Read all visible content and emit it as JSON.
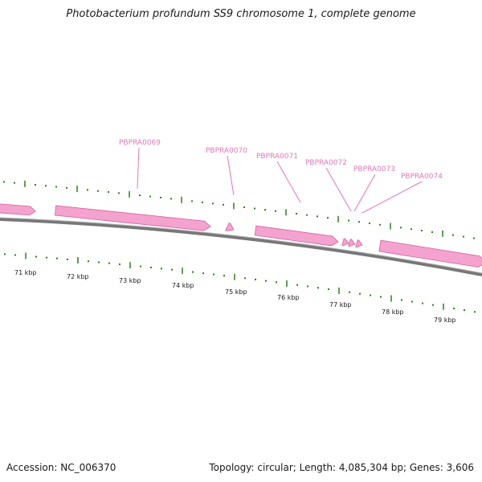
{
  "title": "Photobacterium profundum SS9 chromosome 1, complete genome",
  "footer": {
    "accession": "Accession: NC_006370",
    "stats": "Topology: circular; Length: 4,085,304 bp; Genes: 3,606"
  },
  "colors": {
    "gene_fill": "#f4a3cf",
    "gene_edge": "#d0609d",
    "gene_label": "#e077b5",
    "tick": "#2e7d1e",
    "backbone": "#777777"
  },
  "gene_labels": [
    "PBPRA0069",
    "PBPRA0070",
    "PBPRA0071",
    "PBPRA0072",
    "PBPRA0073",
    "PBPRA0074"
  ],
  "kbp_labels": [
    "71 kbp",
    "72 kbp",
    "73 kbp",
    "74 kbp",
    "75 kbp",
    "76 kbp",
    "77 kbp",
    "78 kbp",
    "79 kbp"
  ]
}
